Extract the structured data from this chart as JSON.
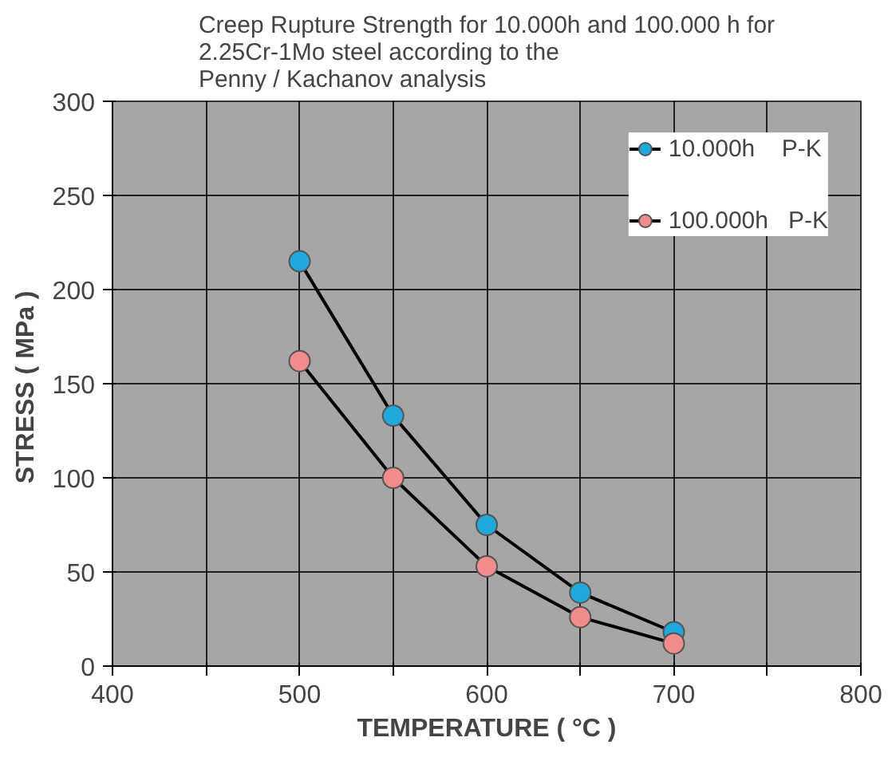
{
  "chart_data": {
    "type": "line",
    "title": "Creep Rupture Strength for 10.000h and 100.000 h for\n2.25Cr-1Mo steel  according to the\nPenny / Kachanov analysis",
    "xlabel": "TEMPERATURE ( °C )",
    "ylabel": "STRESS  ( MPa )",
    "x": [
      500,
      550,
      600,
      650,
      700
    ],
    "series": [
      {
        "name": "10.000h    P-K",
        "color": "#1fa8dc",
        "values": [
          215,
          133,
          75,
          39,
          18
        ]
      },
      {
        "name": "100.000h   P-K",
        "color": "#f08c8c",
        "values": [
          162,
          100,
          53,
          26,
          12
        ]
      }
    ],
    "xlim": [
      400,
      800
    ],
    "ylim": [
      0,
      300
    ],
    "xticks": [
      400,
      {
        "value": 450,
        "label": null
      },
      500,
      {
        "value": 550,
        "label": null
      },
      600,
      {
        "value": 650,
        "label": null
      },
      700,
      {
        "value": 750,
        "label": null
      },
      800
    ],
    "yticks": [
      0,
      50,
      100,
      150,
      200,
      250,
      300
    ],
    "grid": true,
    "legend": "top right",
    "marker": "circle",
    "line_style": "solid"
  }
}
